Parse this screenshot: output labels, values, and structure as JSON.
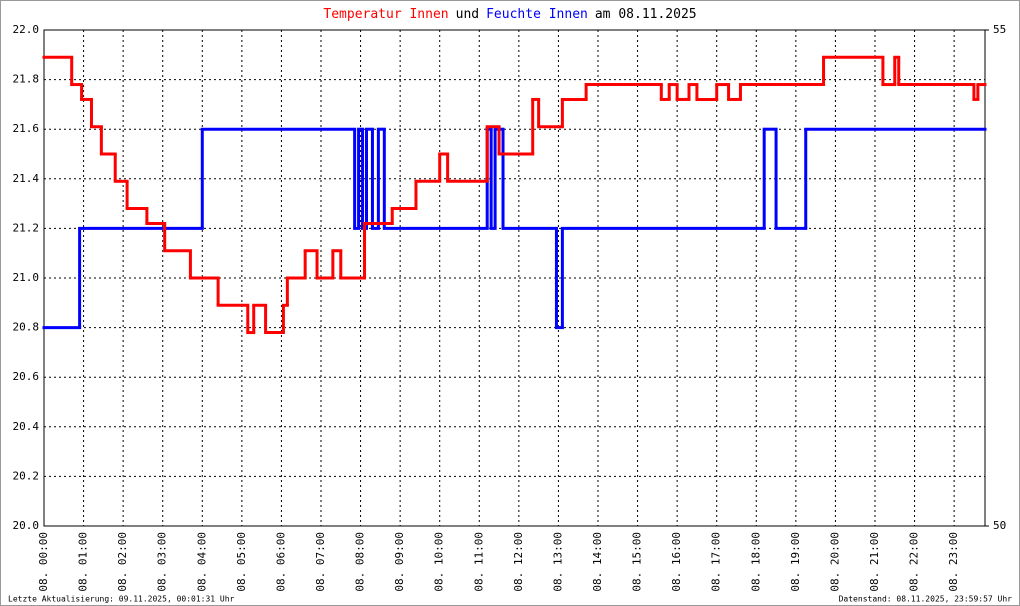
{
  "chart_data": {
    "type": "step",
    "title_parts": [
      {
        "text": "Temperatur Innen",
        "color": "#ff0000"
      },
      {
        "text": "und",
        "color": "#000000"
      },
      {
        "text": "Feuchte Innen",
        "color": "#0000ff"
      },
      {
        "text": "am 08.11.2025",
        "color": "#000000"
      }
    ],
    "footer_left": "Letzte Aktualisierung: 09.11.2025, 00:01:31 Uhr",
    "footer_right": "Datenstand: 08.11.2025, 23:59:57 Uhr",
    "xlim": [
      0,
      23.78
    ],
    "xticks": [
      {
        "value": 0,
        "label": "08. 00:00"
      },
      {
        "value": 1,
        "label": "08. 01:00"
      },
      {
        "value": 2,
        "label": "08. 02:00"
      },
      {
        "value": 3,
        "label": "08. 03:00"
      },
      {
        "value": 4,
        "label": "08. 04:00"
      },
      {
        "value": 5,
        "label": "08. 05:00"
      },
      {
        "value": 6,
        "label": "08. 06:00"
      },
      {
        "value": 7,
        "label": "08. 07:00"
      },
      {
        "value": 8,
        "label": "08. 08:00"
      },
      {
        "value": 9,
        "label": "08. 09:00"
      },
      {
        "value": 10,
        "label": "08. 10:00"
      },
      {
        "value": 11,
        "label": "08. 11:00"
      },
      {
        "value": 12,
        "label": "08. 12:00"
      },
      {
        "value": 13,
        "label": "08. 13:00"
      },
      {
        "value": 14,
        "label": "08. 14:00"
      },
      {
        "value": 15,
        "label": "08. 15:00"
      },
      {
        "value": 16,
        "label": "08. 16:00"
      },
      {
        "value": 17,
        "label": "08. 17:00"
      },
      {
        "value": 18,
        "label": "08. 18:00"
      },
      {
        "value": 19,
        "label": "08. 19:00"
      },
      {
        "value": 20,
        "label": "08. 20:00"
      },
      {
        "value": 21,
        "label": "08. 21:00"
      },
      {
        "value": 22,
        "label": "08. 22:00"
      },
      {
        "value": 23,
        "label": "08. 23:00"
      }
    ],
    "ylim": [
      20,
      22
    ],
    "yticks": [
      {
        "value": 20,
        "label": "20.0"
      },
      20.2,
      20.4,
      20.6,
      20.8,
      {
        "value": 21,
        "label": "21.0"
      },
      21.2,
      21.4,
      21.6,
      21.8,
      {
        "value": 22,
        "label": "22.0"
      }
    ],
    "y2lim": [
      50,
      55
    ],
    "y2ticks": [
      50,
      55
    ],
    "grid": true,
    "series": [
      {
        "name": "Temperatur Innen",
        "color": "#ff0000",
        "x": [
          0,
          0.7,
          0.95,
          1.2,
          1.45,
          1.8,
          2.1,
          2.6,
          3.05,
          3.7,
          4.4,
          5.15,
          5.3,
          5.6,
          6.05,
          6.15,
          6.6,
          6.9,
          7.3,
          7.5,
          8.1,
          8.8,
          9.4,
          10.0,
          10.2,
          11.2,
          11.5,
          12.35,
          12.5,
          13.1,
          13.7,
          15.6,
          15.8,
          16.0,
          16.3,
          16.5,
          17.0,
          17.3,
          17.6,
          19.7,
          21.2,
          21.5,
          21.6,
          23.5,
          23.6
        ],
        "values": [
          21.89,
          21.78,
          21.72,
          21.61,
          21.5,
          21.39,
          21.28,
          21.22,
          21.11,
          21.0,
          20.89,
          20.78,
          20.89,
          20.78,
          20.89,
          21.0,
          21.11,
          21.0,
          21.11,
          21.0,
          21.22,
          21.28,
          21.39,
          21.5,
          21.39,
          21.61,
          21.5,
          21.72,
          21.61,
          21.72,
          21.78,
          21.72,
          21.78,
          21.72,
          21.78,
          21.72,
          21.78,
          21.72,
          21.78,
          21.89,
          21.78,
          21.89,
          21.78,
          21.72,
          21.78
        ]
      },
      {
        "name": "Feuchte Innen",
        "color": "#0000ff",
        "axis": "y2",
        "x": [
          0,
          0.9,
          4.0,
          7.85,
          7.95,
          8.05,
          8.15,
          8.3,
          8.45,
          8.6,
          11.2,
          11.3,
          11.4,
          11.6,
          12.95,
          13.1,
          18.2,
          18.5,
          19.25
        ],
        "values": [
          52,
          53,
          54,
          53,
          54,
          53,
          54,
          53,
          54,
          53,
          54,
          53,
          54,
          53,
          52,
          53,
          54,
          53,
          54
        ]
      }
    ]
  }
}
